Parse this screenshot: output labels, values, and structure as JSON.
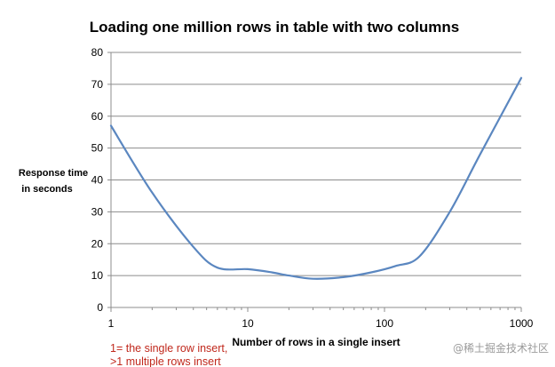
{
  "chart_data": {
    "type": "line",
    "title": "Loading one million rows in table with two columns",
    "ylabel_lines": [
      "Response time",
      "in seconds"
    ],
    "xlabel": "Number of rows in a single insert",
    "xscale": "log",
    "xlim": [
      1,
      1000
    ],
    "ylim": [
      0,
      80
    ],
    "x_ticks": [
      1,
      10,
      100,
      1000
    ],
    "y_ticks": [
      0,
      10,
      20,
      30,
      40,
      50,
      60,
      70,
      80
    ],
    "grid": "horizontal",
    "series": [
      {
        "color": "#5b87c0",
        "points": [
          {
            "x": 1,
            "y": 57
          },
          {
            "x": 2,
            "y": 36
          },
          {
            "x": 4,
            "y": 19
          },
          {
            "x": 6,
            "y": 12.5
          },
          {
            "x": 10,
            "y": 12
          },
          {
            "x": 15,
            "y": 11
          },
          {
            "x": 20,
            "y": 10
          },
          {
            "x": 30,
            "y": 9
          },
          {
            "x": 50,
            "y": 9.5
          },
          {
            "x": 80,
            "y": 11
          },
          {
            "x": 120,
            "y": 13
          },
          {
            "x": 180,
            "y": 16
          },
          {
            "x": 300,
            "y": 30
          },
          {
            "x": 500,
            "y": 48
          },
          {
            "x": 1000,
            "y": 72
          }
        ]
      }
    ],
    "annotation_lines": [
      "1= the single row  insert,",
      ">1 multiple rows insert"
    ],
    "annotation_color": "#c0281c"
  },
  "watermark": "@稀土掘金技术社区"
}
